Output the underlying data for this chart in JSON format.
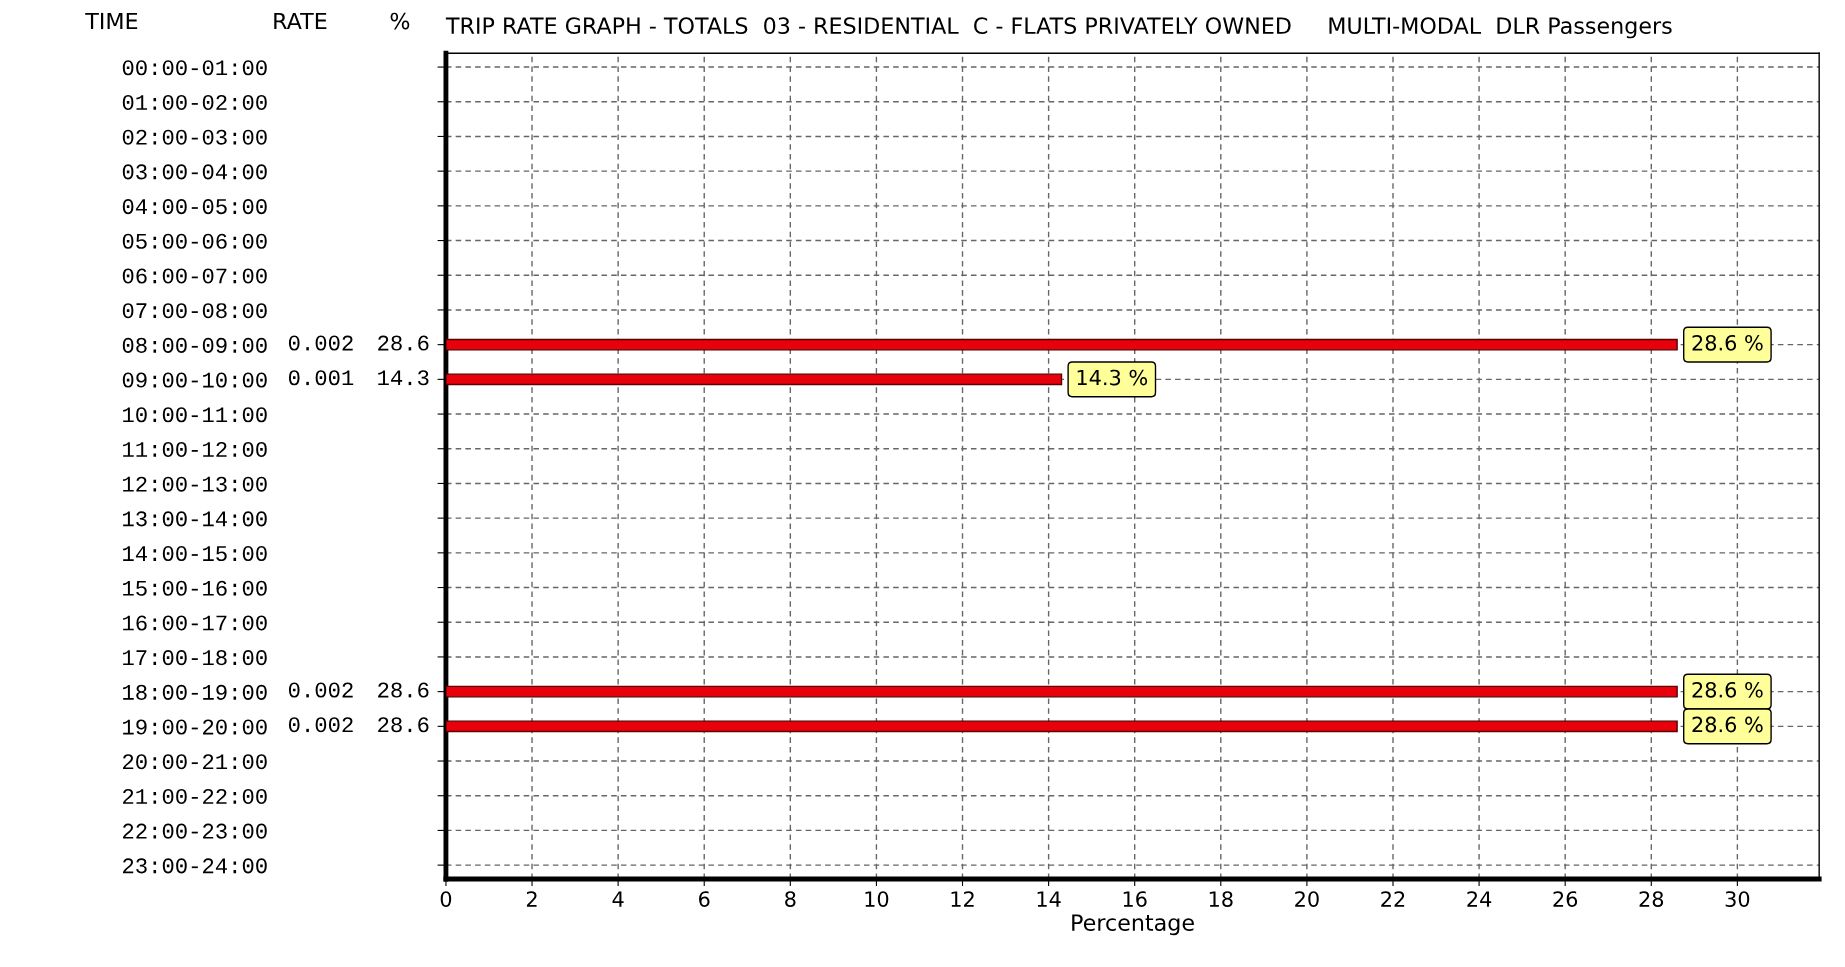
{
  "chart_data": {
    "type": "bar",
    "orientation": "horizontal",
    "title": "TRIP RATE GRAPH - TOTALS  03 - RESIDENTIAL  C - FLATS PRIVATELY OWNED     MULTI-MODAL  DLR Passengers",
    "xlabel": "Percentage",
    "categories": [
      "00:00-01:00",
      "01:00-02:00",
      "02:00-03:00",
      "03:00-04:00",
      "04:00-05:00",
      "05:00-06:00",
      "06:00-07:00",
      "07:00-08:00",
      "08:00-09:00",
      "09:00-10:00",
      "10:00-11:00",
      "11:00-12:00",
      "12:00-13:00",
      "13:00-14:00",
      "14:00-15:00",
      "15:00-16:00",
      "16:00-17:00",
      "17:00-18:00",
      "18:00-19:00",
      "19:00-20:00",
      "20:00-21:00",
      "21:00-22:00",
      "22:00-23:00",
      "23:00-24:00"
    ],
    "series": [
      {
        "color": "#e8000b",
        "values": [
          null,
          null,
          null,
          null,
          null,
          null,
          null,
          null,
          28.6,
          14.3,
          null,
          null,
          null,
          null,
          null,
          null,
          null,
          null,
          28.6,
          28.6,
          null,
          null,
          null,
          null
        ],
        "value_labels": [
          null,
          null,
          null,
          null,
          null,
          null,
          null,
          null,
          "28.6 %",
          "14.3 %",
          null,
          null,
          null,
          null,
          null,
          null,
          null,
          null,
          "28.6 %",
          "28.6 %",
          null,
          null,
          null,
          null
        ]
      }
    ],
    "xlim": [
      0,
      31.9
    ],
    "xticks": [
      0,
      2,
      4,
      6,
      8,
      10,
      12,
      14,
      16,
      18,
      20,
      22,
      24,
      26,
      28,
      30
    ],
    "grid": true,
    "annotations": [
      "TIME",
      "RATE",
      "%",
      "0.002",
      "28.6",
      "0.001",
      "14.3",
      "0.002",
      "28.6",
      "0.002",
      "28.6"
    ]
  }
}
